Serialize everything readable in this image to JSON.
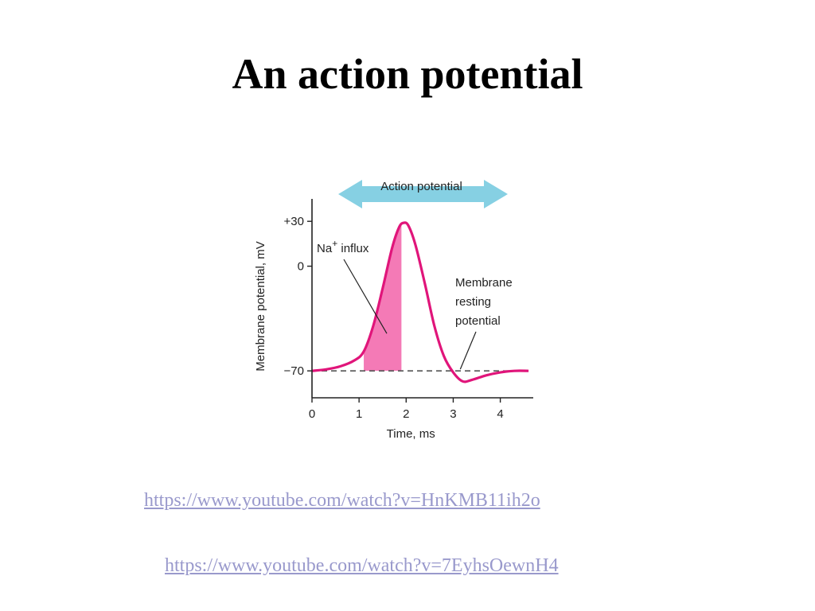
{
  "slide": {
    "title": "An action potential"
  },
  "links": [
    "https://www.youtube.com/watch?v=HnKMB11ih2o",
    "https://www.youtube.com/watch?v=7EyhsOewnH4"
  ],
  "colors": {
    "curve": "#e0157a",
    "influx_fill": "#f47ab6",
    "arrow": "#86d0e3",
    "axis": "#222222",
    "resting_line": "#555555",
    "link": "#9999cc"
  },
  "chart_data": {
    "type": "line",
    "xlabel": "Time, ms",
    "ylabel": "Membrane potential, mV",
    "xlim": [
      0,
      4.7
    ],
    "ylim": [
      -88,
      45
    ],
    "x_ticks": [
      0,
      1,
      2,
      3,
      4
    ],
    "y_ticks": [
      {
        "value": 30,
        "label": "+30"
      },
      {
        "value": 0,
        "label": "0"
      },
      {
        "value": -70,
        "label": "−70"
      }
    ],
    "series": [
      {
        "x": [
          0,
          0.3,
          0.6,
          0.9,
          1.1,
          1.3,
          1.5,
          1.7,
          1.85,
          1.95,
          2.05,
          2.2,
          2.4,
          2.6,
          2.8,
          3.0,
          3.2,
          3.4,
          3.7,
          4.0,
          4.3,
          4.6
        ],
        "y": [
          -70,
          -69,
          -67,
          -63,
          -57,
          -40,
          -15,
          12,
          26,
          29,
          27,
          14,
          -12,
          -40,
          -60,
          -71,
          -77,
          -76,
          -73,
          -71,
          -70,
          -70
        ]
      }
    ],
    "resting_potential": -70,
    "influx_region": {
      "x_start": 1.1,
      "x_end": 1.9
    },
    "annotations": {
      "influx_label_main": "Na",
      "influx_label_sup": "+",
      "influx_label_rest": " influx",
      "resting_label": [
        "Membrane",
        "resting",
        "potential"
      ],
      "arrow_label": "Action potential"
    }
  }
}
